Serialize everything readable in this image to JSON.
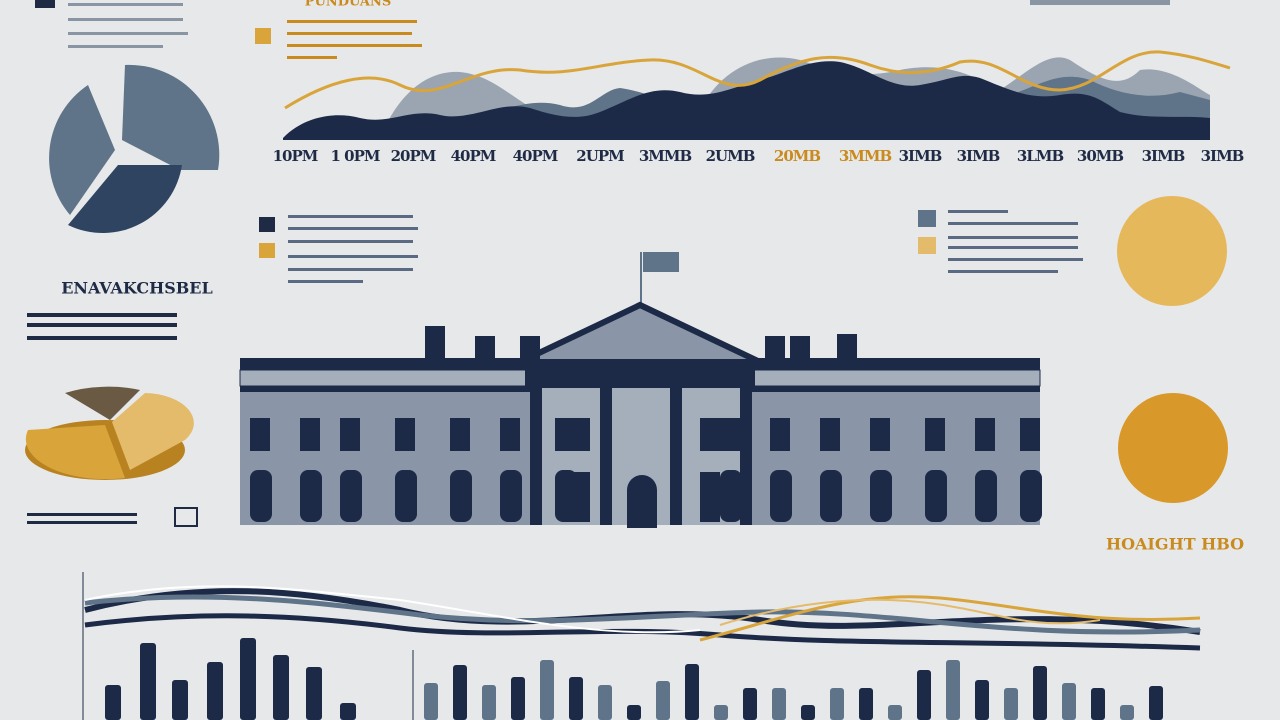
{
  "header": {
    "title": "PUNDUANS"
  },
  "timeline": {
    "labels": [
      "10PM",
      "1 0PM",
      "20PM",
      "40PM",
      "40PM",
      "2UPM",
      "3MMB",
      "2UMB",
      "20MB",
      "3MMB",
      "3IMB",
      "3IMB",
      "3LMB",
      "30MB",
      "3IMB",
      "3IMB"
    ]
  },
  "left_panel": {
    "heading": "ENAVAKCHSBEL"
  },
  "right_panel": {
    "heading": "HOAIGHT HBO"
  }
}
